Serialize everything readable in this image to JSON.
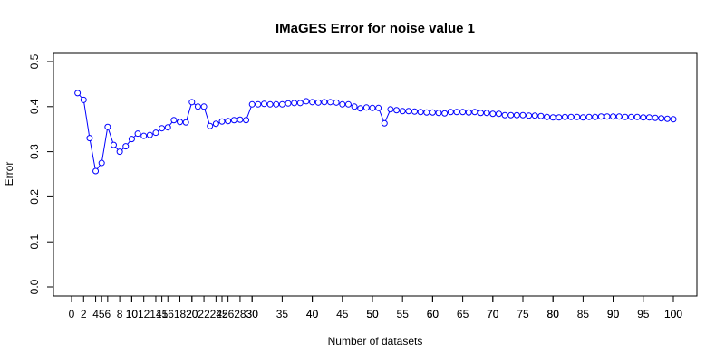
{
  "chart_data": {
    "type": "line",
    "title": "IMaGES Error for noise value 1",
    "xlabel": "Number of datasets",
    "ylabel": "Error",
    "xlim": [
      0,
      100
    ],
    "ylim": [
      0,
      0.5
    ],
    "x_ticks": [
      "0",
      "5",
      "10",
      "15",
      "20",
      "25",
      "30",
      "35",
      "40",
      "45",
      "50",
      "55",
      "60",
      "65",
      "70",
      "75",
      "80",
      "85",
      "90",
      "95",
      "100"
    ],
    "x_tick_values": [
      0,
      5,
      10,
      15,
      20,
      25,
      30,
      35,
      40,
      45,
      50,
      55,
      60,
      65,
      70,
      75,
      80,
      85,
      90,
      95,
      100
    ],
    "x_minor_ticks": [
      "2",
      "4",
      "6",
      "8",
      "10",
      "12",
      "14",
      "16",
      "18",
      "20",
      "22",
      "24",
      "26",
      "28",
      "30",
      "40",
      "50",
      "60",
      "70",
      "80",
      "90",
      "100"
    ],
    "x_minor_tick_values": [
      2,
      4,
      6,
      8,
      10,
      12,
      14,
      16,
      18,
      20,
      22,
      24,
      26,
      28,
      30,
      40,
      50,
      60,
      70,
      80,
      90,
      100
    ],
    "y_ticks": [
      "0.0",
      "0.1",
      "0.2",
      "0.3",
      "0.4",
      "0.5"
    ],
    "y_tick_values": [
      0.0,
      0.1,
      0.2,
      0.3,
      0.4,
      0.5
    ],
    "grid": false,
    "color": "#0000ff",
    "marker": "open-circle",
    "x": [
      1,
      2,
      3,
      4,
      5,
      6,
      7,
      8,
      9,
      10,
      11,
      12,
      13,
      14,
      15,
      16,
      17,
      18,
      19,
      20,
      21,
      22,
      23,
      24,
      25,
      26,
      27,
      28,
      29,
      30,
      31,
      32,
      33,
      34,
      35,
      36,
      37,
      38,
      39,
      40,
      41,
      42,
      43,
      44,
      45,
      46,
      47,
      48,
      49,
      50,
      51,
      52,
      53,
      54,
      55,
      56,
      57,
      58,
      59,
      60,
      61,
      62,
      63,
      64,
      65,
      66,
      67,
      68,
      69,
      70,
      71,
      72,
      73,
      74,
      75,
      76,
      77,
      78,
      79,
      80,
      81,
      82,
      83,
      84,
      85,
      86,
      87,
      88,
      89,
      90,
      91,
      92,
      93,
      94,
      95,
      96,
      97,
      98,
      99,
      100
    ],
    "y": [
      0.43,
      0.415,
      0.33,
      0.257,
      0.275,
      0.355,
      0.315,
      0.3,
      0.312,
      0.328,
      0.34,
      0.335,
      0.337,
      0.342,
      0.352,
      0.354,
      0.37,
      0.366,
      0.365,
      0.41,
      0.4,
      0.4,
      0.357,
      0.362,
      0.367,
      0.368,
      0.37,
      0.371,
      0.37,
      0.405,
      0.405,
      0.406,
      0.405,
      0.405,
      0.405,
      0.407,
      0.408,
      0.408,
      0.412,
      0.41,
      0.409,
      0.41,
      0.41,
      0.409,
      0.405,
      0.405,
      0.4,
      0.396,
      0.398,
      0.397,
      0.397,
      0.363,
      0.394,
      0.392,
      0.39,
      0.39,
      0.389,
      0.388,
      0.387,
      0.387,
      0.386,
      0.385,
      0.388,
      0.388,
      0.388,
      0.387,
      0.388,
      0.386,
      0.386,
      0.384,
      0.384,
      0.381,
      0.381,
      0.381,
      0.381,
      0.38,
      0.38,
      0.379,
      0.377,
      0.376,
      0.376,
      0.377,
      0.377,
      0.377,
      0.376,
      0.377,
      0.377,
      0.378,
      0.378,
      0.378,
      0.378,
      0.377,
      0.377,
      0.377,
      0.376,
      0.376,
      0.375,
      0.374,
      0.373,
      0.372
    ]
  }
}
